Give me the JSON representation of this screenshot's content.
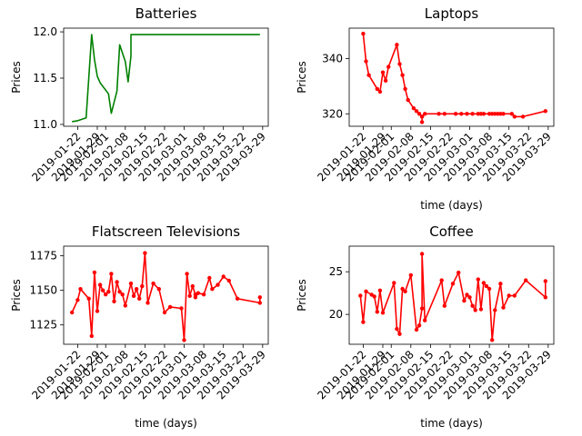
{
  "chart_data": [
    {
      "type": "line",
      "title": "Batteries",
      "xlabel": "",
      "ylabel": "Prices",
      "xlim": [
        "2019-01-17",
        "2019-03-31"
      ],
      "ylim": [
        10.98,
        12.04
      ],
      "yticks": [
        11.0,
        11.5,
        12.0
      ],
      "ytick_labels": [
        "11.0",
        "11.5",
        "12.0"
      ],
      "xticks": [
        "2019-01-22",
        "2019-01-29",
        "2019-02-01",
        "2019-02-08",
        "2019-02-15",
        "2019-02-22",
        "2019-03-01",
        "2019-03-08",
        "2019-03-15",
        "2019-03-22",
        "2019-03-29"
      ],
      "color": "#008000",
      "markers": false,
      "series": [
        {
          "x": [
            "2019-01-20",
            "2019-01-22",
            "2019-01-25",
            "2019-01-27",
            "2019-01-28",
            "2019-01-29",
            "2019-01-30",
            "2019-02-02",
            "2019-02-03",
            "2019-02-05",
            "2019-02-06",
            "2019-02-08",
            "2019-02-09",
            "2019-02-10",
            "2019-02-10",
            "2019-03-28"
          ],
          "y": [
            11.03,
            11.04,
            11.07,
            11.97,
            11.7,
            11.52,
            11.45,
            11.33,
            11.12,
            11.36,
            11.86,
            11.68,
            11.46,
            11.74,
            11.97,
            11.97
          ]
        }
      ]
    },
    {
      "type": "line",
      "title": "Laptops",
      "xlabel": "time (days)",
      "ylabel": "Prices",
      "xlim": [
        "2019-01-17",
        "2019-03-31"
      ],
      "ylim": [
        315.5,
        351
      ],
      "yticks": [
        320,
        340
      ],
      "ytick_labels": [
        "320",
        "340"
      ],
      "xticks": [
        "2019-01-22",
        "2019-01-29",
        "2019-02-01",
        "2019-02-08",
        "2019-02-15",
        "2019-02-22",
        "2019-03-01",
        "2019-03-08",
        "2019-03-15",
        "2019-03-22",
        "2019-03-29"
      ],
      "color": "#ff0000",
      "markers": true,
      "series": [
        {
          "x": [
            "2019-01-22",
            "2019-01-23",
            "2019-01-24",
            "2019-01-27",
            "2019-01-28",
            "2019-01-29",
            "2019-01-30",
            "2019-01-31",
            "2019-02-03",
            "2019-02-04",
            "2019-02-05",
            "2019-02-06",
            "2019-02-07",
            "2019-02-09",
            "2019-02-10",
            "2019-02-11",
            "2019-02-12",
            "2019-02-12",
            "2019-02-12",
            "2019-02-13",
            "2019-02-18",
            "2019-02-20",
            "2019-02-24",
            "2019-02-26",
            "2019-02-28",
            "2019-03-02",
            "2019-03-04",
            "2019-03-05",
            "2019-03-06",
            "2019-03-08",
            "2019-03-09",
            "2019-03-10",
            "2019-03-11",
            "2019-03-12",
            "2019-03-13",
            "2019-03-16",
            "2019-03-17",
            "2019-03-20",
            "2019-03-28"
          ],
          "y": [
            349,
            339,
            334,
            329,
            328,
            335,
            332,
            337,
            345,
            338,
            334,
            329,
            325,
            322,
            321,
            320,
            319,
            317,
            319,
            320,
            320,
            320,
            320,
            320,
            320,
            320,
            320,
            320,
            320,
            320,
            320,
            320,
            320,
            320,
            320,
            320,
            319,
            319,
            321
          ]
        }
      ]
    },
    {
      "type": "line",
      "title": "Flatscreen Televisions",
      "xlabel": "time (days)",
      "ylabel": "Prices",
      "xlim": [
        "2019-01-17",
        "2019-03-31"
      ],
      "ylim": [
        1111,
        1182
      ],
      "yticks": [
        1125,
        1150,
        1175
      ],
      "ytick_labels": [
        "1125",
        "1150",
        "1175"
      ],
      "xticks": [
        "2019-01-22",
        "2019-01-29",
        "2019-02-01",
        "2019-02-08",
        "2019-02-15",
        "2019-02-22",
        "2019-03-01",
        "2019-03-08",
        "2019-03-15",
        "2019-03-22",
        "2019-03-29"
      ],
      "color": "#ff0000",
      "markers": true,
      "series": [
        {
          "x": [
            "2019-01-20",
            "2019-01-22",
            "2019-01-23",
            "2019-01-26",
            "2019-01-27",
            "2019-01-28",
            "2019-01-29",
            "2019-01-30",
            "2019-01-31",
            "2019-02-01",
            "2019-02-02",
            "2019-02-03",
            "2019-02-04",
            "2019-02-05",
            "2019-02-06",
            "2019-02-07",
            "2019-02-08",
            "2019-02-10",
            "2019-02-11",
            "2019-02-12",
            "2019-02-13",
            "2019-02-14",
            "2019-02-15",
            "2019-02-16",
            "2019-02-18",
            "2019-02-20",
            "2019-02-22",
            "2019-02-24",
            "2019-02-28",
            "2019-03-01",
            "2019-03-02",
            "2019-03-03",
            "2019-03-04",
            "2019-03-05",
            "2019-03-05",
            "2019-03-06",
            "2019-03-08",
            "2019-03-10",
            "2019-03-11",
            "2019-03-13",
            "2019-03-15",
            "2019-03-17",
            "2019-03-20",
            "2019-03-28",
            "2019-03-28"
          ],
          "y": [
            1134,
            1143,
            1151,
            1144,
            1117,
            1163,
            1135,
            1154,
            1150,
            1147,
            1149,
            1162,
            1142,
            1156,
            1149,
            1147,
            1139,
            1155,
            1146,
            1151,
            1144,
            1153,
            1177,
            1141,
            1155,
            1151,
            1134,
            1138,
            1137,
            1114,
            1162,
            1146,
            1153,
            1147,
            1145,
            1148,
            1147,
            1159,
            1151,
            1154,
            1160,
            1157,
            1144,
            1141,
            1145
          ]
        }
      ]
    },
    {
      "type": "line",
      "title": "Coffee",
      "xlabel": "time (days)",
      "ylabel": "Prices",
      "xlim": [
        "2019-01-17",
        "2019-03-31"
      ],
      "ylim": [
        16.5,
        28
      ],
      "yticks": [
        20,
        25
      ],
      "ytick_labels": [
        "20",
        "25"
      ],
      "xticks": [
        "2019-01-22",
        "2019-01-29",
        "2019-02-01",
        "2019-02-08",
        "2019-02-15",
        "2019-02-22",
        "2019-03-01",
        "2019-03-08",
        "2019-03-15",
        "2019-03-22",
        "2019-03-29"
      ],
      "color": "#ff0000",
      "markers": true,
      "series": [
        {
          "x": [
            "2019-01-21",
            "2019-01-22",
            "2019-01-23",
            "2019-01-25",
            "2019-01-26",
            "2019-01-27",
            "2019-01-28",
            "2019-01-29",
            "2019-02-02",
            "2019-02-03",
            "2019-02-04",
            "2019-02-05",
            "2019-02-06",
            "2019-02-08",
            "2019-02-10",
            "2019-02-11",
            "2019-02-12",
            "2019-02-12",
            "2019-02-13",
            "2019-02-19",
            "2019-02-20",
            "2019-02-23",
            "2019-02-25",
            "2019-02-27",
            "2019-02-28",
            "2019-03-01",
            "2019-03-02",
            "2019-03-03",
            "2019-03-04",
            "2019-03-05",
            "2019-03-06",
            "2019-03-07",
            "2019-03-08",
            "2019-03-09",
            "2019-03-10",
            "2019-03-12",
            "2019-03-13",
            "2019-03-15",
            "2019-03-17",
            "2019-03-21",
            "2019-03-28",
            "2019-03-28"
          ],
          "y": [
            22.2,
            19.1,
            22.7,
            22.3,
            22.1,
            20.3,
            22.8,
            20.2,
            23.7,
            18.3,
            17.7,
            23.0,
            22.7,
            24.6,
            18.2,
            18.7,
            20.7,
            27.1,
            19.3,
            24.0,
            21.0,
            23.6,
            24.9,
            21.6,
            22.3,
            22.0,
            21.0,
            20.5,
            24.1,
            20.6,
            23.7,
            23.3,
            23.0,
            17.0,
            20.5,
            23.6,
            20.8,
            22.2,
            22.2,
            24.0,
            22.0,
            23.9
          ]
        }
      ]
    }
  ]
}
